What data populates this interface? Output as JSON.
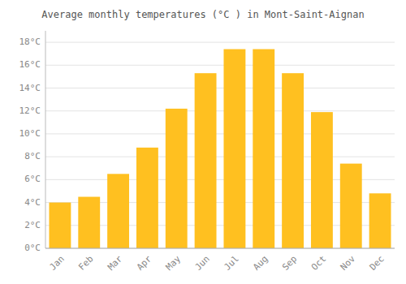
{
  "chart_data": {
    "type": "bar",
    "title": "Average monthly temperatures (°C ) in Mont-Saint-Aignan",
    "categories": [
      "Jan",
      "Feb",
      "Mar",
      "Apr",
      "May",
      "Jun",
      "Jul",
      "Aug",
      "Sep",
      "Oct",
      "Nov",
      "Dec"
    ],
    "values": [
      4.0,
      4.5,
      6.5,
      8.8,
      12.2,
      15.3,
      17.4,
      17.4,
      15.3,
      11.9,
      7.4,
      4.8
    ],
    "color": "#FFC020",
    "ylim": [
      0,
      19
    ],
    "yticks": [
      {
        "value": 0,
        "label": "0°C"
      },
      {
        "value": 2,
        "label": "2°C"
      },
      {
        "value": 4,
        "label": "4°C"
      },
      {
        "value": 6,
        "label": "6°C"
      },
      {
        "value": 8,
        "label": "8°C"
      },
      {
        "value": 10,
        "label": "10°C"
      },
      {
        "value": 12,
        "label": "12°C"
      },
      {
        "value": 14,
        "label": "14°C"
      },
      {
        "value": 16,
        "label": "16°C"
      },
      {
        "value": 18,
        "label": "18°C"
      }
    ],
    "grid": true
  }
}
